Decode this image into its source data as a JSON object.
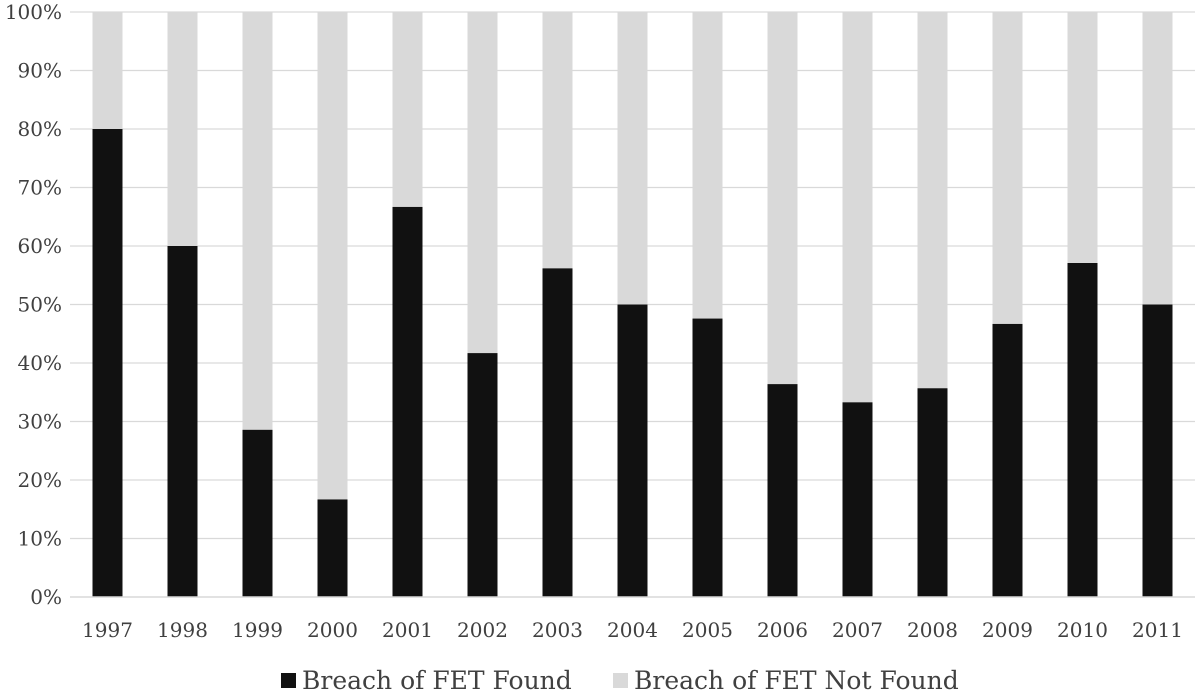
{
  "chart_data": {
    "type": "bar",
    "stacked": true,
    "normalized": true,
    "categories": [
      "1997",
      "1998",
      "1999",
      "2000",
      "2001",
      "2002",
      "2003",
      "2004",
      "2005",
      "2006",
      "2007",
      "2008",
      "2009",
      "2010",
      "2011"
    ],
    "series": [
      {
        "name": "Breach of FET Found",
        "color": "#111111",
        "values": [
          80,
          60,
          28.6,
          16.7,
          66.7,
          41.7,
          56.2,
          50,
          47.6,
          36.4,
          33.3,
          35.7,
          46.7,
          57.1,
          50
        ]
      },
      {
        "name": "Breach of FET Not Found",
        "color": "#d9d9d9",
        "values": [
          20,
          40,
          71.4,
          83.3,
          33.3,
          58.3,
          43.8,
          50,
          52.4,
          63.6,
          66.7,
          64.3,
          53.3,
          42.9,
          50
        ]
      }
    ],
    "ylim": [
      0,
      100
    ],
    "yticks": [
      "0%",
      "10%",
      "20%",
      "30%",
      "40%",
      "50%",
      "60%",
      "70%",
      "80%",
      "90%",
      "100%"
    ],
    "grid": true,
    "legend_position": "bottom",
    "title": "",
    "xlabel": "",
    "ylabel": ""
  }
}
